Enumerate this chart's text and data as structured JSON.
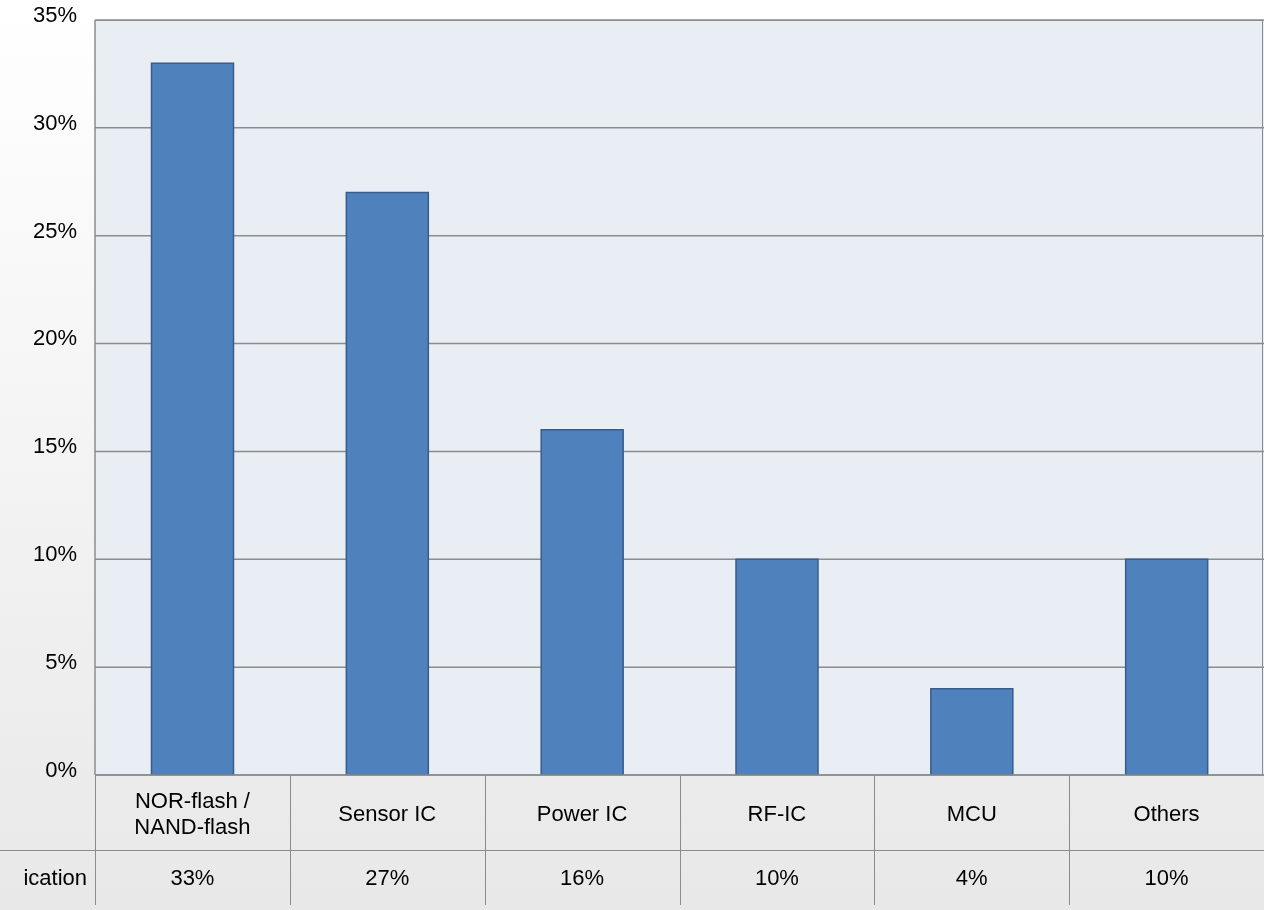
{
  "chart_data": {
    "type": "bar",
    "categories": [
      "NOR-flash / NAND-flash",
      "Sensor IC",
      "Power IC",
      "RF-IC",
      "MCU",
      "Others"
    ],
    "series": [
      {
        "name": "ication",
        "color": "#4f81bd",
        "values": [
          33,
          27,
          16,
          10,
          4,
          10
        ],
        "value_labels": [
          "33%",
          "27%",
          "16%",
          "10%",
          "4%",
          "10%"
        ]
      }
    ],
    "ylim": [
      0,
      35
    ],
    "yticks": [
      {
        "value": 0,
        "label": "0%"
      },
      {
        "value": 5,
        "label": "5%"
      },
      {
        "value": 10,
        "label": "10%"
      },
      {
        "value": 15,
        "label": "15%"
      },
      {
        "value": 20,
        "label": "20%"
      },
      {
        "value": 25,
        "label": "25%"
      },
      {
        "value": 30,
        "label": "30%"
      },
      {
        "value": 35,
        "label": "35%"
      }
    ],
    "grid": "y"
  }
}
